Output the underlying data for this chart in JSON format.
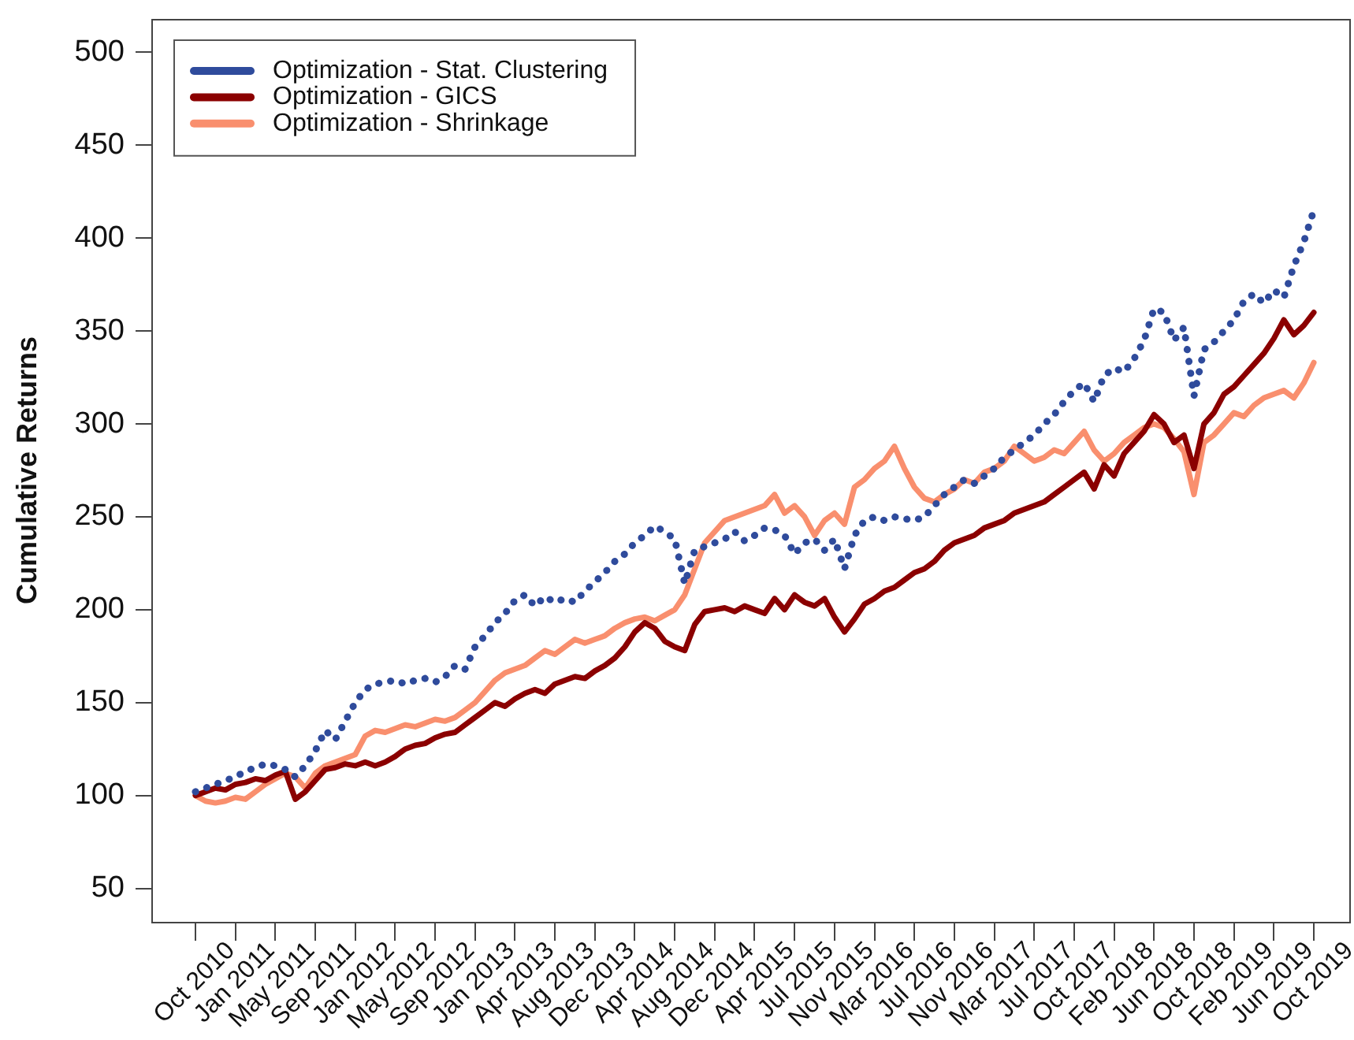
{
  "chart_data": {
    "type": "line",
    "categories": [
      "Oct 2010",
      null,
      null,
      null,
      "Jan 2011",
      null,
      null,
      null,
      "May 2011",
      null,
      null,
      null,
      "Sep 2011",
      null,
      null,
      null,
      "Jan 2012",
      null,
      null,
      null,
      "May 2012",
      null,
      null,
      null,
      "Sep 2012",
      null,
      null,
      null,
      "Jan 2013",
      null,
      null,
      null,
      "Apr 2013",
      null,
      null,
      null,
      "Aug 2013",
      null,
      null,
      null,
      "Dec 2013",
      null,
      null,
      null,
      "Apr 2014",
      null,
      null,
      null,
      "Aug 2014",
      null,
      null,
      null,
      "Dec 2014",
      null,
      null,
      null,
      "Apr 2015",
      null,
      null,
      null,
      "Jul 2015",
      null,
      null,
      null,
      "Nov 2015",
      null,
      null,
      null,
      "Mar 2016",
      null,
      null,
      null,
      "Jul 2016",
      null,
      null,
      null,
      "Nov 2016",
      null,
      null,
      null,
      "Mar 2017",
      null,
      null,
      null,
      "Jul 2017",
      null,
      null,
      null,
      "Oct 2017",
      null,
      null,
      null,
      "Feb 2018",
      null,
      null,
      null,
      "Jun 2018",
      null,
      null,
      null,
      "Oct 2018",
      null,
      null,
      null,
      "Feb 2019",
      null,
      null,
      null,
      "Jun 2019",
      null,
      null,
      null,
      "Oct 2019"
    ],
    "series": [
      {
        "name": "Optimization - Stat. Clustering",
        "color": "#2f4b9c",
        "line_style": "dotted",
        "values": [
          102,
          104,
          106,
          108,
          110,
          113,
          115,
          117,
          116,
          114,
          110,
          116,
          124,
          135,
          130,
          140,
          150,
          157,
          160,
          161,
          162,
          160,
          162,
          163,
          161,
          164,
          170,
          168,
          180,
          186,
          193,
          198,
          205,
          208,
          202,
          207,
          204,
          206,
          204,
          210,
          215,
          220,
          226,
          230,
          236,
          240,
          245,
          242,
          238,
          214,
          232,
          234,
          236,
          238,
          242,
          237,
          240,
          244,
          243,
          240,
          230,
          236,
          238,
          232,
          238,
          222,
          240,
          248,
          250,
          248,
          250,
          249,
          248,
          250,
          256,
          262,
          266,
          270,
          268,
          272,
          276,
          282,
          286,
          290,
          294,
          300,
          305,
          312,
          318,
          322,
          312,
          326,
          330,
          328,
          335,
          345,
          362,
          360,
          345,
          352,
          315,
          340,
          344,
          350,
          356,
          366,
          370,
          365,
          372,
          368,
          385,
          398,
          415
        ]
      },
      {
        "name": "Optimization - GICS",
        "color": "#8b0000",
        "line_style": "solid",
        "values": [
          100,
          102,
          104,
          103,
          106,
          107,
          109,
          108,
          111,
          113,
          98,
          102,
          108,
          114,
          115,
          117,
          116,
          118,
          116,
          118,
          121,
          125,
          127,
          128,
          131,
          133,
          134,
          138,
          142,
          146,
          150,
          148,
          152,
          155,
          157,
          155,
          160,
          162,
          164,
          163,
          167,
          170,
          174,
          180,
          188,
          193,
          190,
          183,
          180,
          178,
          192,
          199,
          200,
          201,
          199,
          202,
          200,
          198,
          206,
          200,
          208,
          204,
          202,
          206,
          196,
          188,
          195,
          203,
          206,
          210,
          212,
          216,
          220,
          222,
          226,
          232,
          236,
          238,
          240,
          244,
          246,
          248,
          252,
          254,
          256,
          258,
          262,
          266,
          270,
          274,
          265,
          278,
          272,
          284,
          290,
          296,
          305,
          300,
          290,
          294,
          276,
          300,
          306,
          316,
          320,
          326,
          332,
          338,
          346,
          356,
          348,
          353,
          360
        ]
      },
      {
        "name": "Optimization - Shrinkage",
        "color": "#f98f6e",
        "line_style": "solid",
        "values": [
          100,
          97,
          96,
          97,
          99,
          98,
          102,
          106,
          109,
          112,
          110,
          104,
          112,
          116,
          118,
          120,
          122,
          132,
          135,
          134,
          136,
          138,
          137,
          139,
          141,
          140,
          142,
          146,
          150,
          156,
          162,
          166,
          168,
          170,
          174,
          178,
          176,
          180,
          184,
          182,
          184,
          186,
          190,
          193,
          195,
          196,
          194,
          197,
          200,
          208,
          222,
          236,
          242,
          248,
          250,
          252,
          254,
          256,
          262,
          252,
          256,
          250,
          240,
          248,
          252,
          246,
          266,
          270,
          276,
          280,
          288,
          276,
          266,
          260,
          258,
          262,
          265,
          270,
          268,
          274,
          276,
          280,
          288,
          284,
          280,
          282,
          286,
          284,
          290,
          296,
          286,
          280,
          284,
          290,
          294,
          298,
          300,
          298,
          292,
          285,
          262,
          290,
          294,
          300,
          306,
          304,
          310,
          314,
          316,
          318,
          314,
          322,
          333
        ]
      }
    ],
    "ylim": [
      32,
      518
    ],
    "yticks": [
      50,
      100,
      150,
      200,
      250,
      300,
      350,
      400,
      450,
      500
    ],
    "ylabel": "Cumulative Returns",
    "legend": "top left"
  }
}
